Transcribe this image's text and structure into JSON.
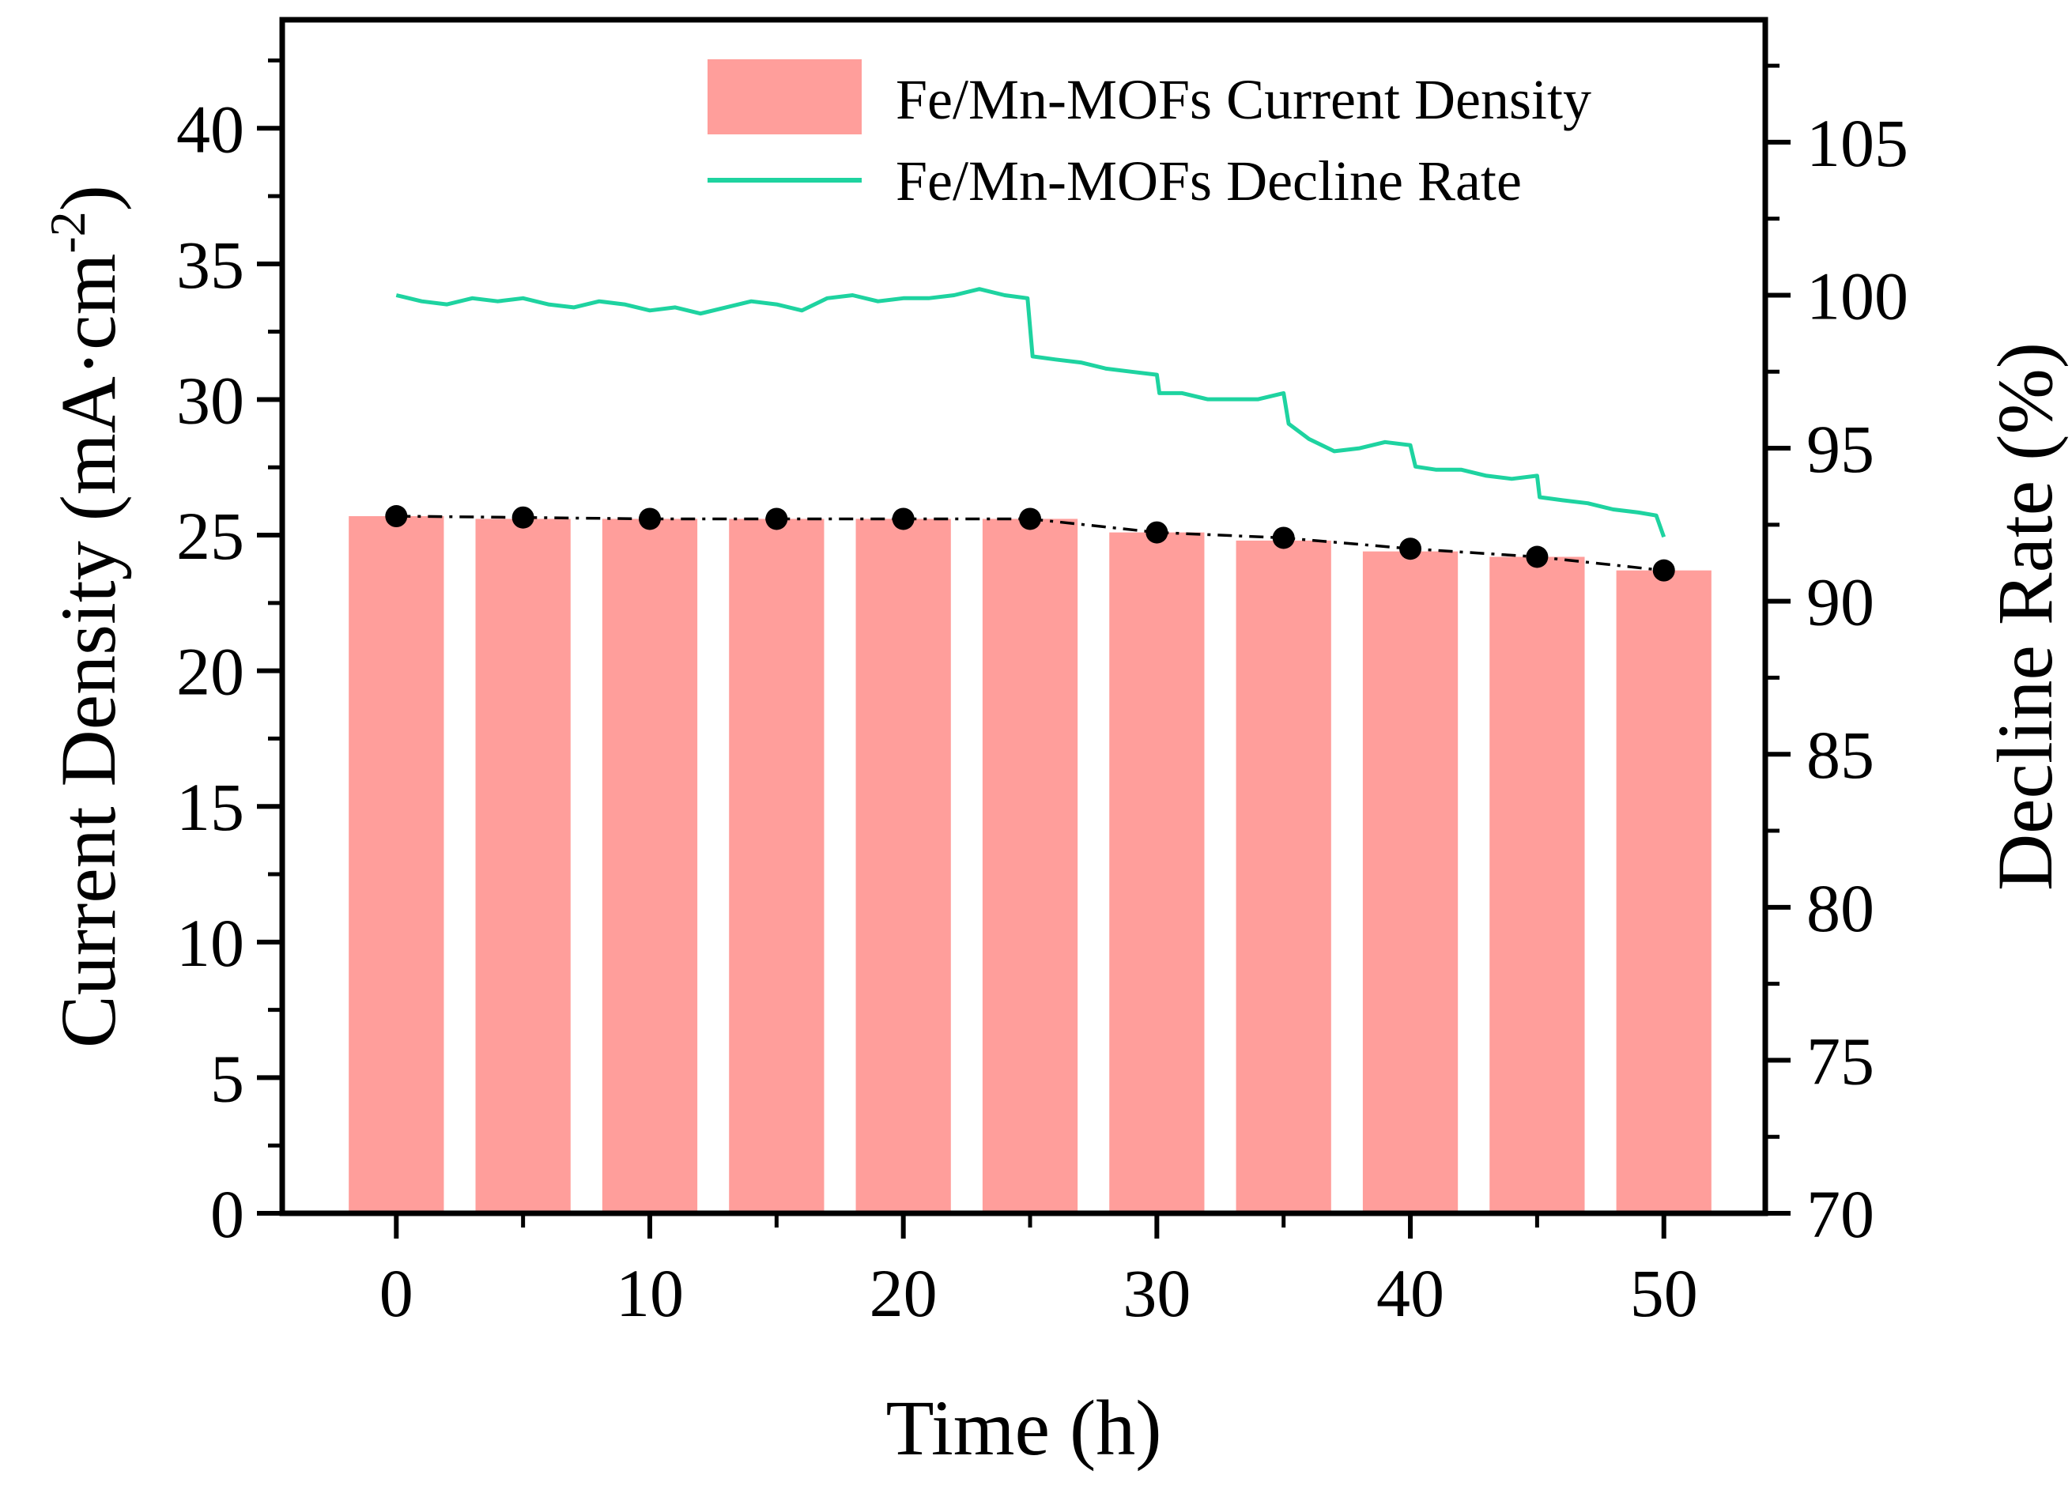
{
  "chart_data": {
    "type": "bar",
    "x_axis": {
      "label": "Time (h)",
      "range": [
        -4.5,
        54
      ],
      "tick_values": [
        0,
        10,
        20,
        30,
        40,
        50
      ],
      "tick_labels": [
        "0",
        "10",
        "20",
        "30",
        "40",
        "50"
      ],
      "minor_tick_values": [
        5,
        15,
        25,
        35,
        45
      ]
    },
    "y_axis_left": {
      "label_main": "Current Density (mA·cm",
      "label_sup": "-2",
      "label_close": ")",
      "range": [
        0,
        44
      ],
      "tick_values": [
        0,
        5,
        10,
        15,
        20,
        25,
        30,
        35,
        40
      ],
      "tick_labels": [
        "0",
        "5",
        "10",
        "15",
        "20",
        "25",
        "30",
        "35",
        "40"
      ]
    },
    "y_axis_right": {
      "label": "Decline Rate (%)",
      "range": [
        70,
        109
      ],
      "tick_values": [
        70,
        75,
        80,
        85,
        90,
        95,
        100,
        105
      ],
      "tick_labels": [
        "70",
        "75",
        "80",
        "85",
        "90",
        "95",
        "100",
        "105"
      ]
    },
    "series": [
      {
        "name": "Fe/Mn-MOFs Current Density",
        "type": "bar",
        "axis": "left",
        "color": "#FF9E9B",
        "x": [
          0,
          5,
          10,
          15,
          20,
          25,
          30,
          35,
          40,
          45,
          50
        ],
        "values": [
          25.7,
          25.6,
          25.6,
          25.6,
          25.6,
          25.6,
          25.1,
          24.8,
          24.4,
          24.2,
          23.7
        ]
      },
      {
        "name": "Current Density points",
        "type": "line-markers",
        "axis": "left",
        "color": "#000000",
        "x": [
          0,
          5,
          10,
          15,
          20,
          25,
          30,
          35,
          40,
          45,
          50
        ],
        "values": [
          25.7,
          25.65,
          25.6,
          25.6,
          25.6,
          25.6,
          25.1,
          24.9,
          24.5,
          24.2,
          23.7
        ]
      },
      {
        "name": "Fe/Mn-MOFs Decline Rate",
        "type": "line",
        "axis": "right",
        "color": "#1ED3A0",
        "x": [
          0,
          1,
          2,
          3,
          4,
          5,
          6,
          7,
          8,
          9,
          10,
          11,
          12,
          13,
          14,
          15,
          16,
          17,
          18,
          19,
          20,
          21,
          22,
          23,
          24,
          24.9,
          25.1,
          26,
          27,
          28,
          29,
          30,
          30.1,
          31,
          32,
          33,
          34,
          35,
          35.2,
          36,
          37,
          38,
          39,
          40,
          40.2,
          41,
          42,
          43,
          44,
          45,
          45.1,
          46,
          47,
          48,
          49,
          49.7,
          50
        ],
        "values": [
          100.0,
          99.8,
          99.7,
          99.9,
          99.8,
          99.9,
          99.7,
          99.6,
          99.8,
          99.7,
          99.5,
          99.6,
          99.4,
          99.6,
          99.8,
          99.7,
          99.5,
          99.9,
          100.0,
          99.8,
          99.9,
          99.9,
          100.0,
          100.2,
          100.0,
          99.9,
          98.0,
          97.9,
          97.8,
          97.6,
          97.5,
          97.4,
          96.8,
          96.8,
          96.6,
          96.6,
          96.6,
          96.8,
          95.8,
          95.3,
          94.9,
          95.0,
          95.2,
          95.1,
          94.4,
          94.3,
          94.3,
          94.1,
          94.0,
          94.1,
          93.4,
          93.3,
          93.2,
          93.0,
          92.9,
          92.8,
          92.1
        ]
      }
    ],
    "legend": {
      "position": "top-right",
      "entries": [
        "Fe/Mn-MOFs Current Density",
        "Fe/Mn-MOFs Decline Rate"
      ]
    }
  }
}
